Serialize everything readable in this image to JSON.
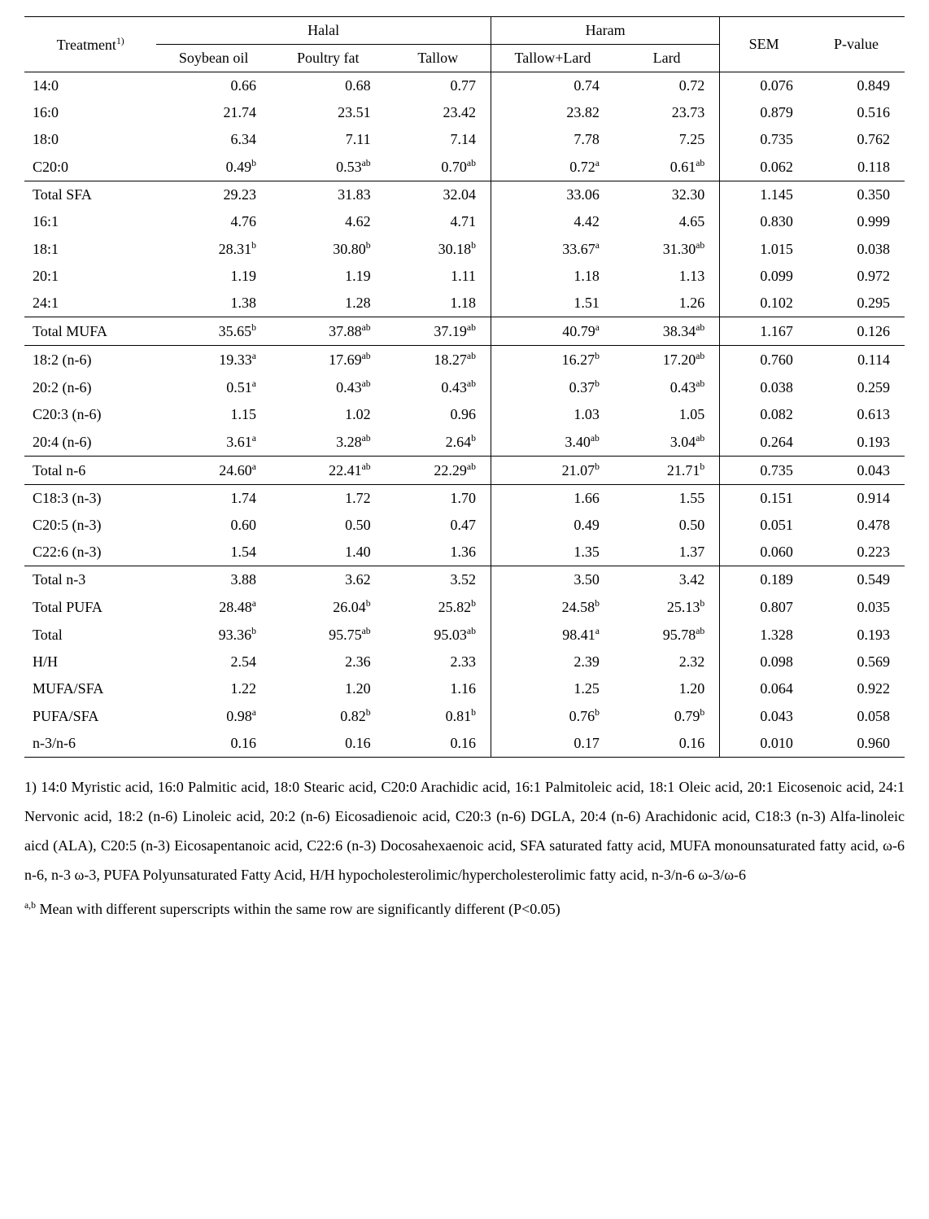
{
  "header": {
    "treatment": "Treatment",
    "treatment_sup": "1)",
    "halal": "Halal",
    "haram": "Haram",
    "sem": "SEM",
    "pvalue": "P-value",
    "soybean": "Soybean oil",
    "poultry": "Poultry fat",
    "tallow": "Tallow",
    "tallow_lard": "Tallow+Lard",
    "lard": "Lard"
  },
  "rows": [
    {
      "label": "14:0",
      "soyv": "0.66",
      "soys": "",
      "pouv": "0.68",
      "pous": "",
      "talv": "0.77",
      "tals": "",
      "tlv": "0.74",
      "tls": "",
      "larv": "0.72",
      "lars": "",
      "sem": "0.076",
      "p": "0.849",
      "border": false
    },
    {
      "label": "16:0",
      "soyv": "21.74",
      "soys": "",
      "pouv": "23.51",
      "pous": "",
      "talv": "23.42",
      "tals": "",
      "tlv": "23.82",
      "tls": "",
      "larv": "23.73",
      "lars": "",
      "sem": "0.879",
      "p": "0.516",
      "border": false
    },
    {
      "label": "18:0",
      "soyv": "6.34",
      "soys": "",
      "pouv": "7.11",
      "pous": "",
      "talv": "7.14",
      "tals": "",
      "tlv": "7.78",
      "tls": "",
      "larv": "7.25",
      "lars": "",
      "sem": "0.735",
      "p": "0.762",
      "border": false
    },
    {
      "label": "C20:0",
      "soyv": "0.49",
      "soys": "b",
      "pouv": "0.53",
      "pous": "ab",
      "talv": "0.70",
      "tals": "ab",
      "tlv": "0.72",
      "tls": "a",
      "larv": "0.61",
      "lars": "ab",
      "sem": "0.062",
      "p": "0.118",
      "border": true
    },
    {
      "label": "Total SFA",
      "soyv": "29.23",
      "soys": "",
      "pouv": "31.83",
      "pous": "",
      "talv": "32.04",
      "tals": "",
      "tlv": "33.06",
      "tls": "",
      "larv": "32.30",
      "lars": "",
      "sem": "1.145",
      "p": "0.350",
      "border": false
    },
    {
      "label": "16:1",
      "soyv": "4.76",
      "soys": "",
      "pouv": "4.62",
      "pous": "",
      "talv": "4.71",
      "tals": "",
      "tlv": "4.42",
      "tls": "",
      "larv": "4.65",
      "lars": "",
      "sem": "0.830",
      "p": "0.999",
      "border": false
    },
    {
      "label": "18:1",
      "soyv": "28.31",
      "soys": "b",
      "pouv": "30.80",
      "pous": "b",
      "talv": "30.18",
      "tals": "b",
      "tlv": "33.67",
      "tls": "a",
      "larv": "31.30",
      "lars": "ab",
      "sem": "1.015",
      "p": "0.038",
      "border": false
    },
    {
      "label": "20:1",
      "soyv": "1.19",
      "soys": "",
      "pouv": "1.19",
      "pous": "",
      "talv": "1.11",
      "tals": "",
      "tlv": "1.18",
      "tls": "",
      "larv": "1.13",
      "lars": "",
      "sem": "0.099",
      "p": "0.972",
      "border": false
    },
    {
      "label": "24:1",
      "soyv": "1.38",
      "soys": "",
      "pouv": "1.28",
      "pous": "",
      "talv": "1.18",
      "tals": "",
      "tlv": "1.51",
      "tls": "",
      "larv": "1.26",
      "lars": "",
      "sem": "0.102",
      "p": "0.295",
      "border": true
    },
    {
      "label": "Total MUFA",
      "soyv": "35.65",
      "soys": "b",
      "pouv": "37.88",
      "pous": "ab",
      "talv": "37.19",
      "tals": "ab",
      "tlv": "40.79",
      "tls": "a",
      "larv": "38.34",
      "lars": "ab",
      "sem": "1.167",
      "p": "0.126",
      "border": true
    },
    {
      "label": "18:2 (n-6)",
      "soyv": "19.33",
      "soys": "a",
      "pouv": "17.69",
      "pous": "ab",
      "talv": "18.27",
      "tals": "ab",
      "tlv": "16.27",
      "tls": "b",
      "larv": "17.20",
      "lars": "ab",
      "sem": "0.760",
      "p": "0.114",
      "border": false
    },
    {
      "label": "20:2 (n-6)",
      "soyv": "0.51",
      "soys": "a",
      "pouv": "0.43",
      "pous": "ab",
      "talv": "0.43",
      "tals": "ab",
      "tlv": "0.37",
      "tls": "b",
      "larv": "0.43",
      "lars": "ab",
      "sem": "0.038",
      "p": "0.259",
      "border": false
    },
    {
      "label": "C20:3 (n-6)",
      "soyv": "1.15",
      "soys": "",
      "pouv": "1.02",
      "pous": "",
      "talv": "0.96",
      "tals": "",
      "tlv": "1.03",
      "tls": "",
      "larv": "1.05",
      "lars": "",
      "sem": "0.082",
      "p": "0.613",
      "border": false
    },
    {
      "label": "20:4 (n-6)",
      "soyv": "3.61",
      "soys": "a",
      "pouv": "3.28",
      "pous": "ab",
      "talv": "2.64",
      "tals": "b",
      "tlv": "3.40",
      "tls": "ab",
      "larv": "3.04",
      "lars": "ab",
      "sem": "0.264",
      "p": "0.193",
      "border": true
    },
    {
      "label": "Total n-6",
      "soyv": "24.60",
      "soys": "a",
      "pouv": "22.41",
      "pous": "ab",
      "talv": "22.29",
      "tals": "ab",
      "tlv": "21.07",
      "tls": "b",
      "larv": "21.71",
      "lars": "b",
      "sem": "0.735",
      "p": "0.043",
      "border": true
    },
    {
      "label": "C18:3 (n-3)",
      "soyv": "1.74",
      "soys": "",
      "pouv": "1.72",
      "pous": "",
      "talv": "1.70",
      "tals": "",
      "tlv": "1.66",
      "tls": "",
      "larv": "1.55",
      "lars": "",
      "sem": "0.151",
      "p": "0.914",
      "border": false
    },
    {
      "label": "C20:5 (n-3)",
      "soyv": "0.60",
      "soys": "",
      "pouv": "0.50",
      "pous": "",
      "talv": "0.47",
      "tals": "",
      "tlv": "0.49",
      "tls": "",
      "larv": "0.50",
      "lars": "",
      "sem": "0.051",
      "p": "0.478",
      "border": false
    },
    {
      "label": "C22:6 (n-3)",
      "soyv": "1.54",
      "soys": "",
      "pouv": "1.40",
      "pous": "",
      "talv": "1.36",
      "tals": "",
      "tlv": "1.35",
      "tls": "",
      "larv": "1.37",
      "lars": "",
      "sem": "0.060",
      "p": "0.223",
      "border": true
    },
    {
      "label": "Total n-3",
      "soyv": "3.88",
      "soys": "",
      "pouv": "3.62",
      "pous": "",
      "talv": "3.52",
      "tals": "",
      "tlv": "3.50",
      "tls": "",
      "larv": "3.42",
      "lars": "",
      "sem": "0.189",
      "p": "0.549",
      "border": false
    },
    {
      "label": "Total PUFA",
      "soyv": "28.48",
      "soys": "a",
      "pouv": "26.04",
      "pous": "b",
      "talv": "25.82",
      "tals": "b",
      "tlv": "24.58",
      "tls": "b",
      "larv": "25.13",
      "lars": "b",
      "sem": "0.807",
      "p": "0.035",
      "border": false
    },
    {
      "label": "Total",
      "soyv": "93.36",
      "soys": "b",
      "pouv": "95.75",
      "pous": "ab",
      "talv": "95.03",
      "tals": "ab",
      "tlv": "98.41",
      "tls": "a",
      "larv": "95.78",
      "lars": "ab",
      "sem": "1.328",
      "p": "0.193",
      "border": false
    },
    {
      "label": "H/H",
      "soyv": "2.54",
      "soys": "",
      "pouv": "2.36",
      "pous": "",
      "talv": "2.33",
      "tals": "",
      "tlv": "2.39",
      "tls": "",
      "larv": "2.32",
      "lars": "",
      "sem": "0.098",
      "p": "0.569",
      "border": false
    },
    {
      "label": "MUFA/SFA",
      "soyv": "1.22",
      "soys": "",
      "pouv": "1.20",
      "pous": "",
      "talv": "1.16",
      "tals": "",
      "tlv": "1.25",
      "tls": "",
      "larv": "1.20",
      "lars": "",
      "sem": "0.064",
      "p": "0.922",
      "border": false
    },
    {
      "label": "PUFA/SFA",
      "soyv": "0.98",
      "soys": "a",
      "pouv": "0.82",
      "pous": "b",
      "talv": "0.81",
      "tals": "b",
      "tlv": "0.76",
      "tls": "b",
      "larv": "0.79",
      "lars": "b",
      "sem": "0.043",
      "p": "0.058",
      "border": false
    },
    {
      "label": "n-3/n-6",
      "soyv": "0.16",
      "soys": "",
      "pouv": "0.16",
      "pous": "",
      "talv": "0.16",
      "tals": "",
      "tlv": "0.17",
      "tls": "",
      "larv": "0.16",
      "lars": "",
      "sem": "0.010",
      "p": "0.960",
      "border": false
    }
  ],
  "footnote1": "1) 14:0 Myristic acid, 16:0 Palmitic acid, 18:0 Stearic acid, C20:0 Arachidic acid, 16:1 Palmitoleic acid, 18:1 Oleic acid, 20:1 Eicosenoic acid, 24:1 Nervonic acid, 18:2 (n-6) Linoleic acid, 20:2 (n-6) Eicosadienoic acid, C20:3 (n-6) DGLA, 20:4 (n-6) Arachidonic acid, C18:3 (n-3) Alfa-linoleic aicd (ALA), C20:5 (n-3) Eicosapentanoic acid, C22:6 (n-3) Docosahexaenoic acid, SFA saturated fatty acid, MUFA monounsaturated fatty acid, ω-6 n-6, n-3 ω-3, PUFA Polyunsaturated Fatty Acid, H/H hypocholesterolimic/hypercholesterolimic fatty acid, n-3/n-6 ω-3/ω-6",
  "footnote2_sup": "a,b",
  "footnote2_text": " Mean with different superscripts within the same row are significantly different (P<0.05)"
}
